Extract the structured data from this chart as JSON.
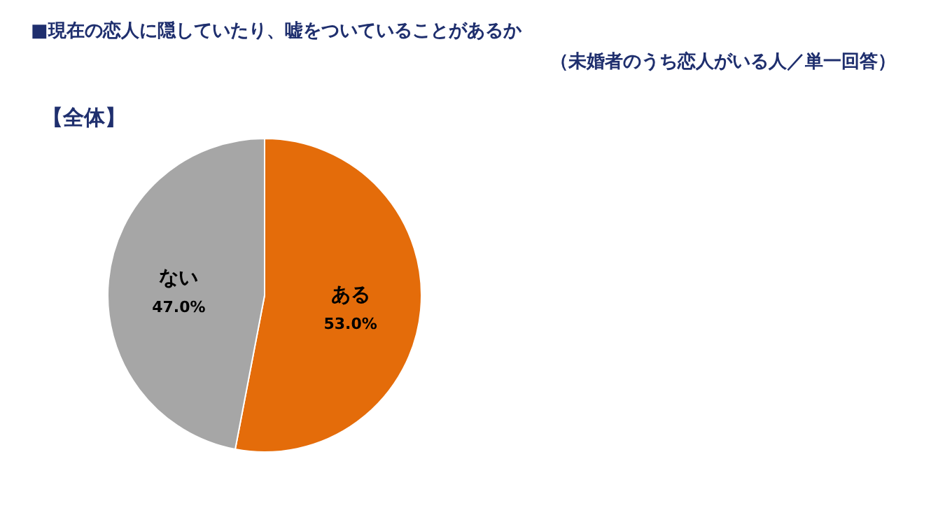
{
  "chart_data": {
    "type": "pie",
    "title": "■現在の恋人に隠していたり、嘘をついていることがあるか",
    "subtitle": "（未婚者のうち恋人がいる人／単一回答）",
    "annotations": [
      "【全体】"
    ],
    "categories": [
      "ある",
      "ない"
    ],
    "values": [
      53.0,
      47.0
    ],
    "value_labels": [
      "53.0%",
      "47.0%"
    ],
    "colors": [
      "#e46c0a",
      "#a6a6a6"
    ]
  }
}
